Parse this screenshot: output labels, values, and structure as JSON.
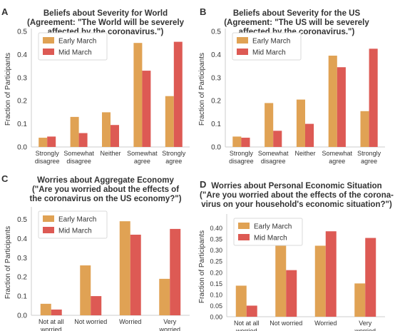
{
  "figure": {
    "colors": {
      "background": "#ffffff",
      "text": "#333333",
      "axis": "#cccccc",
      "early": "#E0A254",
      "mid": "#DD5A54",
      "legend_border": "#d9d9d9"
    }
  },
  "chart_data": [
    {
      "type": "bar",
      "panel_letter": "A",
      "title_lines": [
        "Beliefs about Severity for World",
        "(Agreement: \"The World will be severely",
        "affected by the coronavirus.\")"
      ],
      "xlabel": "",
      "ylabel": "Fraction of Participants",
      "ylim": [
        0,
        0.5
      ],
      "yticks": [
        "0.0",
        "0.1",
        "0.2",
        "0.3",
        "0.4",
        "0.5"
      ],
      "categories": [
        [
          "Strongly",
          "disagree"
        ],
        [
          "Somewhat",
          "disagree"
        ],
        [
          "Neither"
        ],
        [
          "Somewhat",
          "agree"
        ],
        [
          "Strongly",
          "agree"
        ]
      ],
      "series": [
        {
          "name": "Early March",
          "values": [
            0.04,
            0.13,
            0.15,
            0.45,
            0.22
          ]
        },
        {
          "name": "Mid March",
          "values": [
            0.045,
            0.06,
            0.095,
            0.33,
            0.455
          ]
        }
      ],
      "legend": "top-left",
      "grid": false
    },
    {
      "type": "bar",
      "panel_letter": "B",
      "title_lines": [
        "Beliefs about Severity for the US",
        "(Agreement: \"The US will be severely",
        "affected by the coronavirus.\")"
      ],
      "xlabel": "",
      "ylabel": "Fraction of Participants",
      "ylim": [
        0,
        0.5
      ],
      "yticks": [
        "0.0",
        "0.1",
        "0.2",
        "0.3",
        "0.4",
        "0.5"
      ],
      "categories": [
        [
          "Strongly",
          "disagree"
        ],
        [
          "Somewhat",
          "disagree"
        ],
        [
          "Neither"
        ],
        [
          "Somewhat",
          "agree"
        ],
        [
          "Strongly",
          "agree"
        ]
      ],
      "series": [
        {
          "name": "Early March",
          "values": [
            0.045,
            0.19,
            0.205,
            0.395,
            0.155
          ]
        },
        {
          "name": "Mid March",
          "values": [
            0.04,
            0.07,
            0.1,
            0.345,
            0.425
          ]
        }
      ],
      "legend": "top-left",
      "grid": false
    },
    {
      "type": "bar",
      "panel_letter": "C",
      "title_lines": [
        "Worries about Aggregate Economy",
        "(\"Are you worried about the effects of",
        "the coronavirus on the US economy?\")"
      ],
      "xlabel": "",
      "ylabel": "Fraction of Participants",
      "ylim": [
        0,
        0.55
      ],
      "yticks": [
        "0.0",
        "0.1",
        "0.2",
        "0.3",
        "0.4",
        "0.5"
      ],
      "categories": [
        [
          "Not at all",
          "worried"
        ],
        [
          "Not worried"
        ],
        [
          "Worried"
        ],
        [
          "Very",
          "worried"
        ]
      ],
      "series": [
        {
          "name": "Early March",
          "values": [
            0.06,
            0.26,
            0.49,
            0.19
          ]
        },
        {
          "name": "Mid March",
          "values": [
            0.03,
            0.1,
            0.42,
            0.45
          ]
        }
      ],
      "legend": "top-left",
      "grid": false
    },
    {
      "type": "bar",
      "panel_letter": "D",
      "title_lines": [
        "Worries about Personal Economic Situation",
        "(\"Are you worried about the effects of the corona-",
        "virus on your household's economic situation?\")"
      ],
      "xlabel": "",
      "ylabel": "Fraction of Participants",
      "ylim": [
        0,
        0.45
      ],
      "yticks": [
        "0.00",
        "0.05",
        "0.10",
        "0.15",
        "0.20",
        "0.25",
        "0.30",
        "0.35",
        "0.40"
      ],
      "categories": [
        [
          "Not at all",
          "worried"
        ],
        [
          "Not worried"
        ],
        [
          "Worried"
        ],
        [
          "Very",
          "worried"
        ]
      ],
      "series": [
        {
          "name": "Early March",
          "values": [
            0.14,
            0.385,
            0.32,
            0.15
          ]
        },
        {
          "name": "Mid March",
          "values": [
            0.05,
            0.21,
            0.385,
            0.355
          ]
        }
      ],
      "legend": "top-left",
      "grid": false
    }
  ]
}
